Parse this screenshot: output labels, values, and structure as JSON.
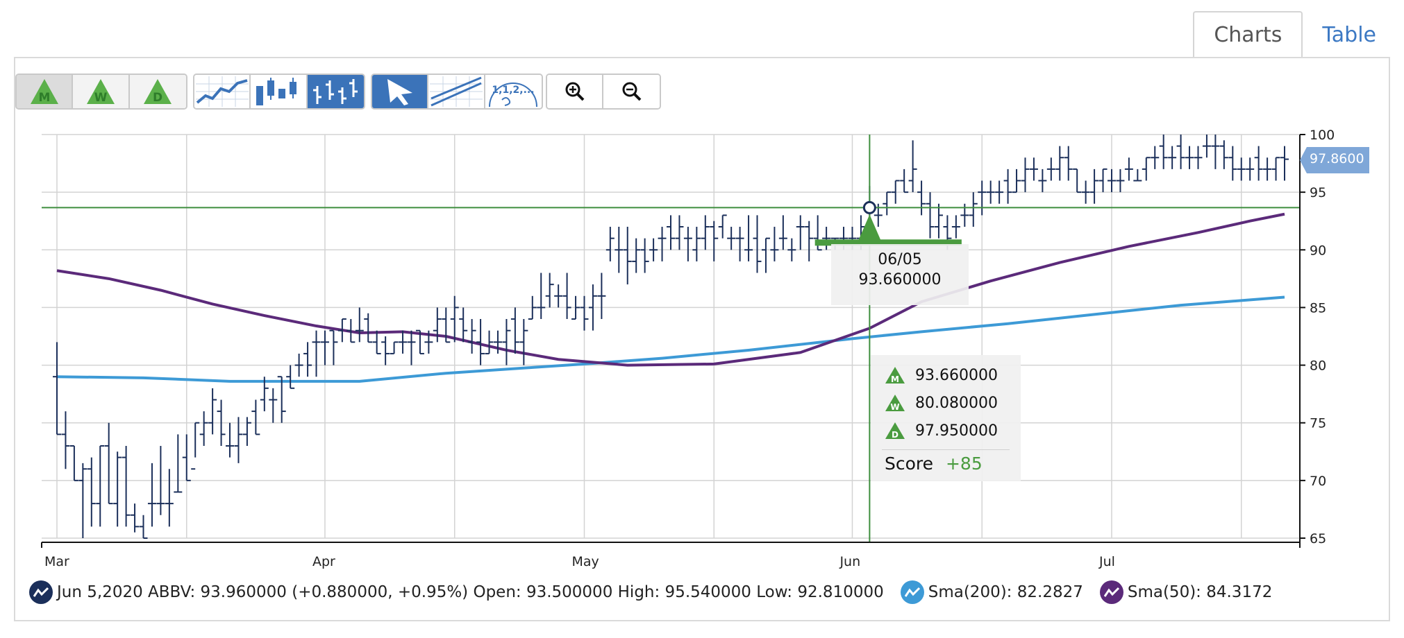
{
  "tabs": [
    {
      "label": "Charts",
      "active": true
    },
    {
      "label": "Table",
      "active": false
    }
  ],
  "toolbar": {
    "rating_buttons": [
      {
        "letter": "M",
        "pressed": true
      },
      {
        "letter": "W",
        "pressed": false
      },
      {
        "letter": "D",
        "pressed": false
      }
    ],
    "chart_type_buttons": [
      {
        "icon": "line-chart-icon",
        "selected": false
      },
      {
        "icon": "candlestick-chart-icon",
        "selected": false
      },
      {
        "icon": "ohlc-bar-chart-icon",
        "selected": true
      }
    ],
    "tool_buttons": [
      {
        "icon": "pointer-arrow-icon",
        "selected": true
      },
      {
        "icon": "trendline-icon",
        "selected": false
      },
      {
        "icon": "fibonacci-icon",
        "label": "1,1,2,...",
        "selected": false
      }
    ],
    "zoom_buttons": [
      {
        "icon": "zoom-in-icon"
      },
      {
        "icon": "zoom-out-icon"
      }
    ]
  },
  "chart_data": {
    "type": "ohlc",
    "symbol": "ABBV",
    "ylim": [
      65,
      100
    ],
    "yticks": [
      "100",
      "95",
      "90",
      "85",
      "80",
      "75",
      "70",
      "65"
    ],
    "x_labels": [
      {
        "label": "Mar",
        "day": 0
      },
      {
        "label": "Apr",
        "day": 31
      },
      {
        "label": "May",
        "day": 61
      },
      {
        "label": "Jun",
        "day": 92
      },
      {
        "label": "Jul",
        "day": 122
      }
    ],
    "grid": true,
    "last_price": "97.8600",
    "bars": [
      [
        0,
        79,
        82,
        74,
        74
      ],
      [
        1,
        74,
        76,
        71,
        73
      ],
      [
        2,
        73,
        73,
        70,
        70
      ],
      [
        3,
        70,
        71.5,
        65,
        71
      ],
      [
        4,
        71,
        72,
        66,
        68
      ],
      [
        5,
        68,
        73,
        66,
        73
      ],
      [
        6,
        73,
        75,
        68,
        68
      ],
      [
        7,
        68,
        72.5,
        66,
        72
      ],
      [
        8,
        72,
        73,
        66,
        67
      ],
      [
        9,
        67,
        68,
        65.5,
        66
      ],
      [
        10,
        66,
        67,
        65,
        65
      ],
      [
        11,
        68,
        71.5,
        66,
        68
      ],
      [
        12,
        68,
        73,
        67,
        68
      ],
      [
        13,
        68,
        71,
        66,
        68
      ],
      [
        14,
        69,
        74,
        69,
        69
      ],
      [
        15,
        72,
        74,
        70,
        70
      ],
      [
        16,
        71,
        75,
        72,
        75
      ],
      [
        17,
        74,
        76,
        73,
        75
      ],
      [
        18,
        75,
        78,
        74,
        77
      ],
      [
        19,
        76,
        77,
        73,
        74
      ],
      [
        20,
        73,
        75,
        72,
        73
      ],
      [
        21,
        73,
        75.5,
        71.5,
        74
      ],
      [
        22,
        74,
        75.5,
        73,
        75
      ],
      [
        23,
        76,
        77,
        74,
        74
      ],
      [
        24,
        77,
        79,
        76,
        78
      ],
      [
        25,
        77,
        78,
        75,
        77
      ],
      [
        26,
        79,
        79,
        75,
        76
      ],
      [
        27,
        79,
        80,
        78,
        78
      ],
      [
        28,
        80,
        81,
        79,
        80
      ],
      [
        29,
        81,
        82,
        79,
        80
      ],
      [
        30,
        82,
        83,
        79,
        82
      ],
      [
        31,
        82,
        83,
        80,
        82
      ],
      [
        32,
        83,
        83,
        80,
        82
      ],
      [
        33,
        83,
        84,
        82,
        84
      ],
      [
        34,
        83,
        84,
        82,
        82
      ],
      [
        35,
        83,
        85,
        82,
        83
      ],
      [
        36,
        84,
        84.5,
        82,
        82
      ],
      [
        37,
        82,
        83,
        81,
        81
      ],
      [
        38,
        82,
        82.5,
        80,
        81
      ],
      [
        39,
        81,
        82,
        81,
        82
      ],
      [
        40,
        82,
        83,
        81,
        82
      ],
      [
        41,
        82,
        83,
        80,
        82
      ],
      [
        42,
        83,
        83,
        81,
        81
      ],
      [
        43,
        82,
        83,
        81,
        82
      ],
      [
        44,
        83,
        85,
        82,
        84
      ],
      [
        45,
        84,
        85,
        82,
        82
      ],
      [
        46,
        84,
        86,
        82,
        85
      ],
      [
        47,
        84,
        85,
        82,
        83
      ],
      [
        48,
        82,
        84,
        81,
        83
      ],
      [
        49,
        82,
        84,
        80,
        81
      ],
      [
        50,
        81,
        83,
        81,
        82
      ],
      [
        51,
        82,
        83,
        81,
        82
      ],
      [
        52,
        82,
        84,
        80,
        83
      ],
      [
        53,
        84,
        85,
        81,
        82
      ],
      [
        54,
        82,
        84,
        80,
        83
      ],
      [
        55,
        84,
        86,
        84,
        85
      ],
      [
        56,
        85,
        88,
        84,
        85
      ],
      [
        57,
        86,
        88,
        85,
        87
      ],
      [
        58,
        86,
        87,
        85,
        86
      ],
      [
        59,
        86,
        88,
        84,
        85
      ],
      [
        60,
        84,
        86,
        84,
        85
      ],
      [
        61,
        85,
        86,
        83,
        84
      ],
      [
        62,
        85,
        87,
        83,
        86
      ],
      [
        63,
        86,
        88,
        84,
        86
      ],
      [
        64,
        90,
        92,
        89,
        91
      ],
      [
        65,
        90,
        92,
        88,
        90
      ],
      [
        66,
        90,
        92,
        87,
        89
      ],
      [
        67,
        89,
        91,
        88,
        90
      ],
      [
        68,
        90,
        91,
        88,
        89
      ],
      [
        69,
        90,
        91,
        89,
        90
      ],
      [
        70,
        91,
        92,
        89,
        91
      ],
      [
        71,
        92,
        93,
        90,
        91
      ],
      [
        72,
        91,
        93,
        90,
        92
      ],
      [
        73,
        91,
        92,
        89,
        91
      ],
      [
        74,
        90,
        92,
        89,
        91
      ],
      [
        75,
        91,
        93,
        90,
        92
      ],
      [
        76,
        92,
        92.5,
        89,
        91
      ],
      [
        77,
        92,
        93,
        91,
        93
      ],
      [
        78,
        91,
        92,
        90,
        91
      ],
      [
        79,
        91,
        92,
        89,
        91
      ],
      [
        80,
        90,
        93,
        89,
        90
      ],
      [
        81,
        91,
        93,
        88,
        89
      ],
      [
        82,
        90,
        91,
        88,
        91
      ],
      [
        83,
        90,
        92,
        89,
        90
      ],
      [
        84,
        91,
        93,
        90,
        91
      ],
      [
        85,
        90,
        91,
        89,
        90
      ],
      [
        86,
        92,
        93,
        90,
        92
      ],
      [
        87,
        92,
        92.5,
        89,
        91
      ],
      [
        88,
        91,
        93,
        90,
        90
      ],
      [
        89,
        91,
        92,
        90,
        91
      ],
      [
        90,
        91,
        91,
        90,
        91
      ],
      [
        91,
        91,
        92,
        90,
        91
      ],
      [
        92,
        91,
        92,
        90,
        91
      ],
      [
        93,
        91,
        93,
        90,
        92
      ],
      [
        94,
        93.5,
        95.54,
        92.81,
        93.96
      ],
      [
        95,
        93,
        94,
        92,
        93
      ],
      [
        96,
        94,
        95,
        93,
        95
      ],
      [
        97,
        95,
        96,
        94,
        96
      ],
      [
        98,
        96,
        97,
        95,
        95
      ],
      [
        99,
        96,
        99.5,
        95,
        97
      ],
      [
        100,
        95,
        96,
        93,
        94
      ],
      [
        101,
        94,
        95,
        91,
        92
      ],
      [
        102,
        92,
        94,
        91,
        93
      ],
      [
        103,
        92,
        93,
        90,
        91
      ],
      [
        104,
        92,
        93,
        91,
        92
      ],
      [
        105,
        93,
        94,
        92,
        93
      ],
      [
        106,
        93,
        95,
        92,
        94
      ],
      [
        107,
        95,
        96,
        93,
        95
      ],
      [
        108,
        95,
        96,
        94,
        95
      ],
      [
        109,
        95,
        96,
        94,
        95
      ],
      [
        110,
        96,
        97,
        94,
        95
      ],
      [
        111,
        95,
        97,
        95,
        96
      ],
      [
        112,
        96,
        98,
        95,
        97
      ],
      [
        113,
        97,
        98,
        96,
        97
      ],
      [
        114,
        96,
        97,
        95,
        96
      ],
      [
        115,
        97,
        98,
        96,
        97
      ],
      [
        116,
        97,
        99,
        96,
        98
      ],
      [
        117,
        98,
        99,
        96,
        97
      ],
      [
        118,
        97,
        97,
        95,
        95
      ],
      [
        119,
        95,
        96,
        94,
        95
      ],
      [
        120,
        95,
        97,
        94,
        96
      ],
      [
        121,
        96,
        97,
        95,
        97
      ],
      [
        122,
        96,
        97,
        95,
        96
      ],
      [
        123,
        96,
        97,
        95,
        96
      ],
      [
        124,
        97,
        98,
        96,
        97
      ],
      [
        125,
        96,
        97,
        96,
        96
      ],
      [
        126,
        97,
        98,
        96,
        98
      ],
      [
        127,
        98,
        99,
        97,
        98
      ],
      [
        128,
        99,
        100,
        97,
        98
      ],
      [
        129,
        98,
        99,
        97,
        98
      ],
      [
        130,
        99,
        100,
        97,
        98
      ],
      [
        131,
        98,
        99,
        97,
        98
      ],
      [
        132,
        98,
        99,
        97,
        98
      ],
      [
        133,
        99,
        100,
        98,
        99
      ],
      [
        134,
        99,
        100,
        97,
        99
      ],
      [
        135,
        99,
        99.5,
        97,
        98
      ],
      [
        136,
        98,
        99,
        96,
        97
      ],
      [
        137,
        97,
        98,
        96,
        97
      ],
      [
        138,
        97,
        98,
        96,
        97
      ],
      [
        139,
        98,
        99,
        96,
        97
      ],
      [
        140,
        97,
        98,
        96,
        97
      ],
      [
        141,
        97,
        98,
        96,
        98
      ],
      [
        142,
        98,
        99,
        96,
        97.86
      ]
    ],
    "series": [
      {
        "name": "Sma(200)",
        "color": "#3d9ad6",
        "value": "82.2827",
        "points": [
          [
            0,
            79
          ],
          [
            10,
            78.9
          ],
          [
            20,
            78.6
          ],
          [
            35,
            78.6
          ],
          [
            45,
            79.3
          ],
          [
            55,
            79.8
          ],
          [
            61,
            80.1
          ],
          [
            70,
            80.6
          ],
          [
            80,
            81.3
          ],
          [
            92,
            82.3
          ],
          [
            100,
            82.9
          ],
          [
            110,
            83.6
          ],
          [
            120,
            84.4
          ],
          [
            130,
            85.2
          ],
          [
            142,
            85.9
          ]
        ]
      },
      {
        "name": "Sma(50)",
        "color": "#5b2a7a",
        "value": "84.3172",
        "points": [
          [
            0,
            88.2
          ],
          [
            6,
            87.5
          ],
          [
            12,
            86.5
          ],
          [
            18,
            85.3
          ],
          [
            24,
            84.3
          ],
          [
            30,
            83.4
          ],
          [
            35,
            82.8
          ],
          [
            40,
            82.9
          ],
          [
            45,
            82.5
          ],
          [
            52,
            81.3
          ],
          [
            58,
            80.5
          ],
          [
            66,
            80.0
          ],
          [
            76,
            80.1
          ],
          [
            86,
            81.1
          ],
          [
            94,
            83.2
          ],
          [
            100,
            85.5
          ],
          [
            108,
            87.3
          ],
          [
            116,
            88.9
          ],
          [
            124,
            90.3
          ],
          [
            132,
            91.5
          ],
          [
            138,
            92.5
          ],
          [
            142,
            93.1
          ]
        ]
      }
    ],
    "crosshair": {
      "day": 94,
      "price": 93.66
    },
    "pivot_band": {
      "day_start": 88,
      "day_end": 104,
      "price": 90.6
    },
    "tooltip_date": {
      "date": "06/05",
      "value": "93.660000"
    },
    "tooltip_ratings": {
      "items": [
        {
          "letter": "M",
          "value": "93.660000"
        },
        {
          "letter": "W",
          "value": "80.080000"
        },
        {
          "letter": "D",
          "value": "97.950000"
        }
      ],
      "score_label": "Score",
      "score_value": "+85"
    }
  },
  "legend": {
    "main": "Jun 5,2020 ABBV: 93.960000 (+0.880000, +0.95%) Open: 93.500000 High: 95.540000 Low: 92.810000",
    "sma200_label": "Sma(200): 82.2827",
    "sma50_label": "Sma(50): 84.3172"
  },
  "colors": {
    "bar": "#1b2f5a",
    "grid": "#d3d3d3",
    "crosshair": "#3e8e3e",
    "accent_green": "#4a9b3f",
    "price_tag": "#7fa7d8",
    "toolbar_selected": "#3b73b9"
  }
}
